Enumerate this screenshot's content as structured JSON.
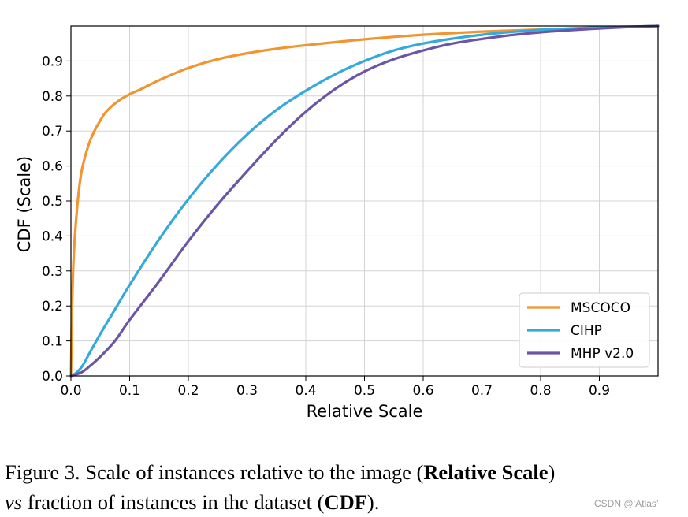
{
  "chart_data": {
    "type": "line",
    "title": "",
    "xlabel": "Relative Scale",
    "ylabel": "CDF (Scale)",
    "xlim": [
      0,
      1
    ],
    "ylim": [
      0,
      1
    ],
    "xticks": [
      "0.0",
      "0.1",
      "0.2",
      "0.3",
      "0.4",
      "0.5",
      "0.6",
      "0.7",
      "0.8",
      "0.9"
    ],
    "yticks": [
      "0.0",
      "0.1",
      "0.2",
      "0.3",
      "0.4",
      "0.5",
      "0.6",
      "0.7",
      "0.8",
      "0.9"
    ],
    "xtick_values": [
      0,
      0.1,
      0.2,
      0.3,
      0.4,
      0.5,
      0.6,
      0.7,
      0.8,
      0.9
    ],
    "ytick_values": [
      0,
      0.1,
      0.2,
      0.3,
      0.4,
      0.5,
      0.6,
      0.7,
      0.8,
      0.9
    ],
    "grid": true,
    "legend_position": "bottom-right",
    "series": [
      {
        "name": "MSCOCO",
        "color": "#f0952f",
        "x": [
          0,
          0.002,
          0.005,
          0.01,
          0.015,
          0.02,
          0.03,
          0.04,
          0.05,
          0.06,
          0.08,
          0.1,
          0.12,
          0.15,
          0.2,
          0.25,
          0.3,
          0.35,
          0.4,
          0.5,
          0.6,
          0.7,
          0.8,
          0.9,
          1.0
        ],
        "y": [
          0,
          0.2,
          0.35,
          0.47,
          0.55,
          0.6,
          0.66,
          0.7,
          0.73,
          0.755,
          0.785,
          0.805,
          0.82,
          0.845,
          0.88,
          0.905,
          0.922,
          0.935,
          0.945,
          0.962,
          0.975,
          0.984,
          0.99,
          0.995,
          1.0
        ]
      },
      {
        "name": "CIHP",
        "color": "#36a9dc",
        "x": [
          0,
          0.01,
          0.02,
          0.03,
          0.05,
          0.075,
          0.1,
          0.15,
          0.2,
          0.25,
          0.3,
          0.35,
          0.4,
          0.45,
          0.5,
          0.55,
          0.6,
          0.65,
          0.7,
          0.75,
          0.8,
          0.85,
          0.9,
          0.95,
          1.0
        ],
        "y": [
          0,
          0.01,
          0.03,
          0.06,
          0.12,
          0.19,
          0.26,
          0.39,
          0.505,
          0.605,
          0.69,
          0.76,
          0.815,
          0.862,
          0.9,
          0.93,
          0.95,
          0.964,
          0.975,
          0.983,
          0.989,
          0.993,
          0.996,
          0.998,
          1.0
        ]
      },
      {
        "name": "MHP v2.0",
        "color": "#6a55a6",
        "x": [
          0,
          0.01,
          0.02,
          0.03,
          0.05,
          0.075,
          0.1,
          0.15,
          0.2,
          0.25,
          0.3,
          0.35,
          0.4,
          0.45,
          0.5,
          0.55,
          0.6,
          0.65,
          0.7,
          0.75,
          0.8,
          0.85,
          0.9,
          0.95,
          1.0
        ],
        "y": [
          0,
          0.005,
          0.012,
          0.025,
          0.055,
          0.1,
          0.16,
          0.27,
          0.385,
          0.49,
          0.585,
          0.675,
          0.755,
          0.82,
          0.87,
          0.905,
          0.93,
          0.95,
          0.963,
          0.974,
          0.982,
          0.988,
          0.993,
          0.997,
          1.0
        ]
      }
    ]
  },
  "caption": {
    "prefix": "Figure 3. Scale of instances relative to the image (",
    "bold1": "Relative Scale",
    "mid1": ")",
    "vs": "vs",
    "mid2": " fraction of instances in the dataset (",
    "bold2": "CDF",
    "suffix": ")."
  },
  "watermark": "CSDN @‘Atlas’"
}
